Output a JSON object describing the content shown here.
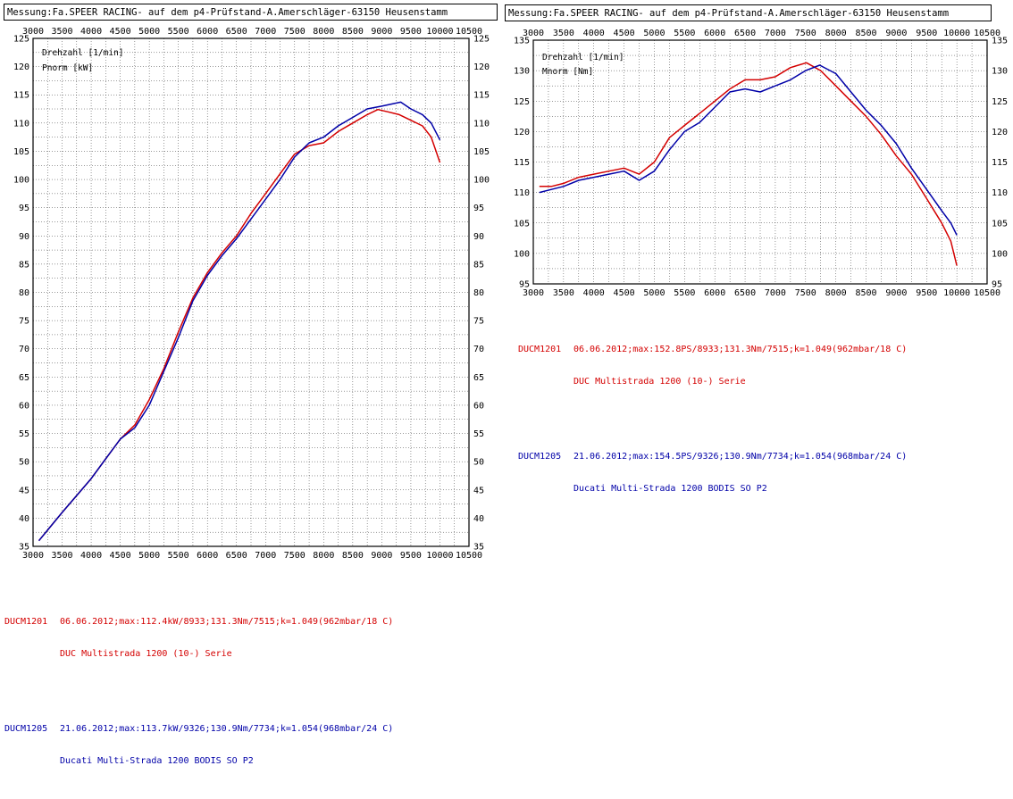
{
  "header_left": "Messung:Fa.SPEER RACING- auf dem p4-Prüfstand-A.Amerschläger-63150 Heusenstamm",
  "header_right": "Messung:Fa.SPEER RACING- auf dem p4-Prüfstand-A.Amerschläger-63150 Heusenstamm",
  "colors": {
    "series1": "#d40000",
    "series2": "#0000a8",
    "grid": "#000000"
  },
  "legend_left": [
    {
      "code": "DUCM1201",
      "line1": "06.06.2012;max:112.4kW/8933;131.3Nm/7515;k=1.049(962mbar/18 C)",
      "line2": "DUC Multistrada 1200 (10-) Serie"
    },
    {
      "code": "DUCM1205",
      "line1": "21.06.2012;max:113.7kW/9326;130.9Nm/7734;k=1.054(968mbar/24 C)",
      "line2": "Ducati Multi-Strada 1200 BODIS SO P2"
    }
  ],
  "legend_right": [
    {
      "code": "DUCM1201",
      "line1": "06.06.2012;max:152.8PS/8933;131.3Nm/7515;k=1.049(962mbar/18 C)",
      "line2": "DUC Multistrada 1200 (10-) Serie"
    },
    {
      "code": "DUCM1205",
      "line1": "21.06.2012;max:154.5PS/9326;130.9Nm/7734;k=1.054(968mbar/24 C)",
      "line2": "Ducati Multi-Strada 1200 BODIS SO P2"
    }
  ],
  "chart_data": [
    {
      "type": "line",
      "axis_label_1": "Drehzahl [1/min]",
      "axis_label_2": "Pnorm [kW]",
      "xlim": [
        3000,
        10500
      ],
      "ylim": [
        35,
        125
      ],
      "x_ticks": [
        3000,
        3500,
        4000,
        4500,
        5000,
        5500,
        6000,
        6500,
        7000,
        7500,
        8000,
        8500,
        9000,
        9500,
        10000,
        10500
      ],
      "y_ticks": [
        35,
        40,
        45,
        50,
        55,
        60,
        65,
        70,
        75,
        80,
        85,
        90,
        95,
        100,
        105,
        110,
        115,
        120,
        125
      ],
      "x_minor_step": 250,
      "y_minor_step": 2.5,
      "grid": true,
      "series": [
        {
          "color": "#d40000",
          "x": [
            3100,
            3300,
            3500,
            3750,
            4000,
            4250,
            4500,
            4750,
            5000,
            5250,
            5500,
            5750,
            6000,
            6250,
            6500,
            6750,
            7000,
            7250,
            7500,
            7750,
            8000,
            8250,
            8500,
            8750,
            8933,
            9100,
            9300,
            9500,
            9700,
            9850,
            10000
          ],
          "y": [
            36,
            38.5,
            41,
            44,
            47,
            50.5,
            54,
            56.5,
            61,
            66.5,
            73,
            79,
            83.5,
            87,
            90,
            94,
            97.5,
            101,
            104.5,
            106,
            106.5,
            108.5,
            110,
            111.5,
            112.4,
            112,
            111.5,
            110.5,
            109.5,
            107.5,
            103
          ]
        },
        {
          "color": "#0000a8",
          "x": [
            3100,
            3300,
            3500,
            3750,
            4000,
            4250,
            4500,
            4750,
            5000,
            5250,
            5500,
            5750,
            6000,
            6250,
            6500,
            6750,
            7000,
            7250,
            7500,
            7750,
            8000,
            8250,
            8500,
            8750,
            9000,
            9326,
            9500,
            9700,
            9850,
            10000
          ],
          "y": [
            36,
            38.5,
            41,
            44,
            47,
            50.5,
            54,
            56,
            60,
            66,
            72,
            78.5,
            83,
            86.5,
            89.5,
            93,
            96.5,
            100,
            104,
            106.5,
            107.5,
            109.5,
            111,
            112.5,
            113,
            113.7,
            112.5,
            111.5,
            110,
            107
          ]
        }
      ]
    },
    {
      "type": "line",
      "axis_label_1": "Drehzahl [1/min]",
      "axis_label_2": "Mnorm [Nm]",
      "xlim": [
        3000,
        10500
      ],
      "ylim": [
        95,
        135
      ],
      "x_ticks": [
        3000,
        3500,
        4000,
        4500,
        5000,
        5500,
        6000,
        6500,
        7000,
        7500,
        8000,
        8500,
        9000,
        9500,
        10000,
        10500
      ],
      "y_ticks": [
        95,
        100,
        105,
        110,
        115,
        120,
        125,
        130,
        135
      ],
      "x_minor_step": 250,
      "y_minor_step": 2.5,
      "grid": true,
      "series": [
        {
          "color": "#d40000",
          "x": [
            3100,
            3300,
            3500,
            3750,
            4000,
            4250,
            4500,
            4750,
            5000,
            5250,
            5500,
            5750,
            6000,
            6250,
            6500,
            6750,
            7000,
            7250,
            7515,
            7750,
            8000,
            8250,
            8500,
            8750,
            9000,
            9250,
            9500,
            9750,
            9900,
            10000
          ],
          "y": [
            111,
            111,
            111.5,
            112.5,
            113,
            113.5,
            114,
            113,
            115,
            119,
            121,
            123,
            125,
            127,
            128.5,
            128.5,
            129,
            130.5,
            131.3,
            130,
            127.5,
            125,
            122.5,
            119.5,
            116,
            113,
            109,
            105,
            102,
            98
          ]
        },
        {
          "color": "#0000a8",
          "x": [
            3100,
            3300,
            3500,
            3750,
            4000,
            4250,
            4500,
            4750,
            5000,
            5250,
            5500,
            5750,
            6000,
            6250,
            6500,
            6750,
            7000,
            7250,
            7500,
            7734,
            8000,
            8250,
            8500,
            8750,
            9000,
            9250,
            9500,
            9750,
            9900,
            10000
          ],
          "y": [
            110,
            110.5,
            111,
            112,
            112.5,
            113,
            113.5,
            112,
            113.5,
            117,
            120,
            121.5,
            124,
            126.5,
            127,
            126.5,
            127.5,
            128.5,
            130,
            130.9,
            129.5,
            126.5,
            123.5,
            121,
            118,
            114,
            110.5,
            107,
            105,
            103
          ]
        }
      ]
    }
  ]
}
